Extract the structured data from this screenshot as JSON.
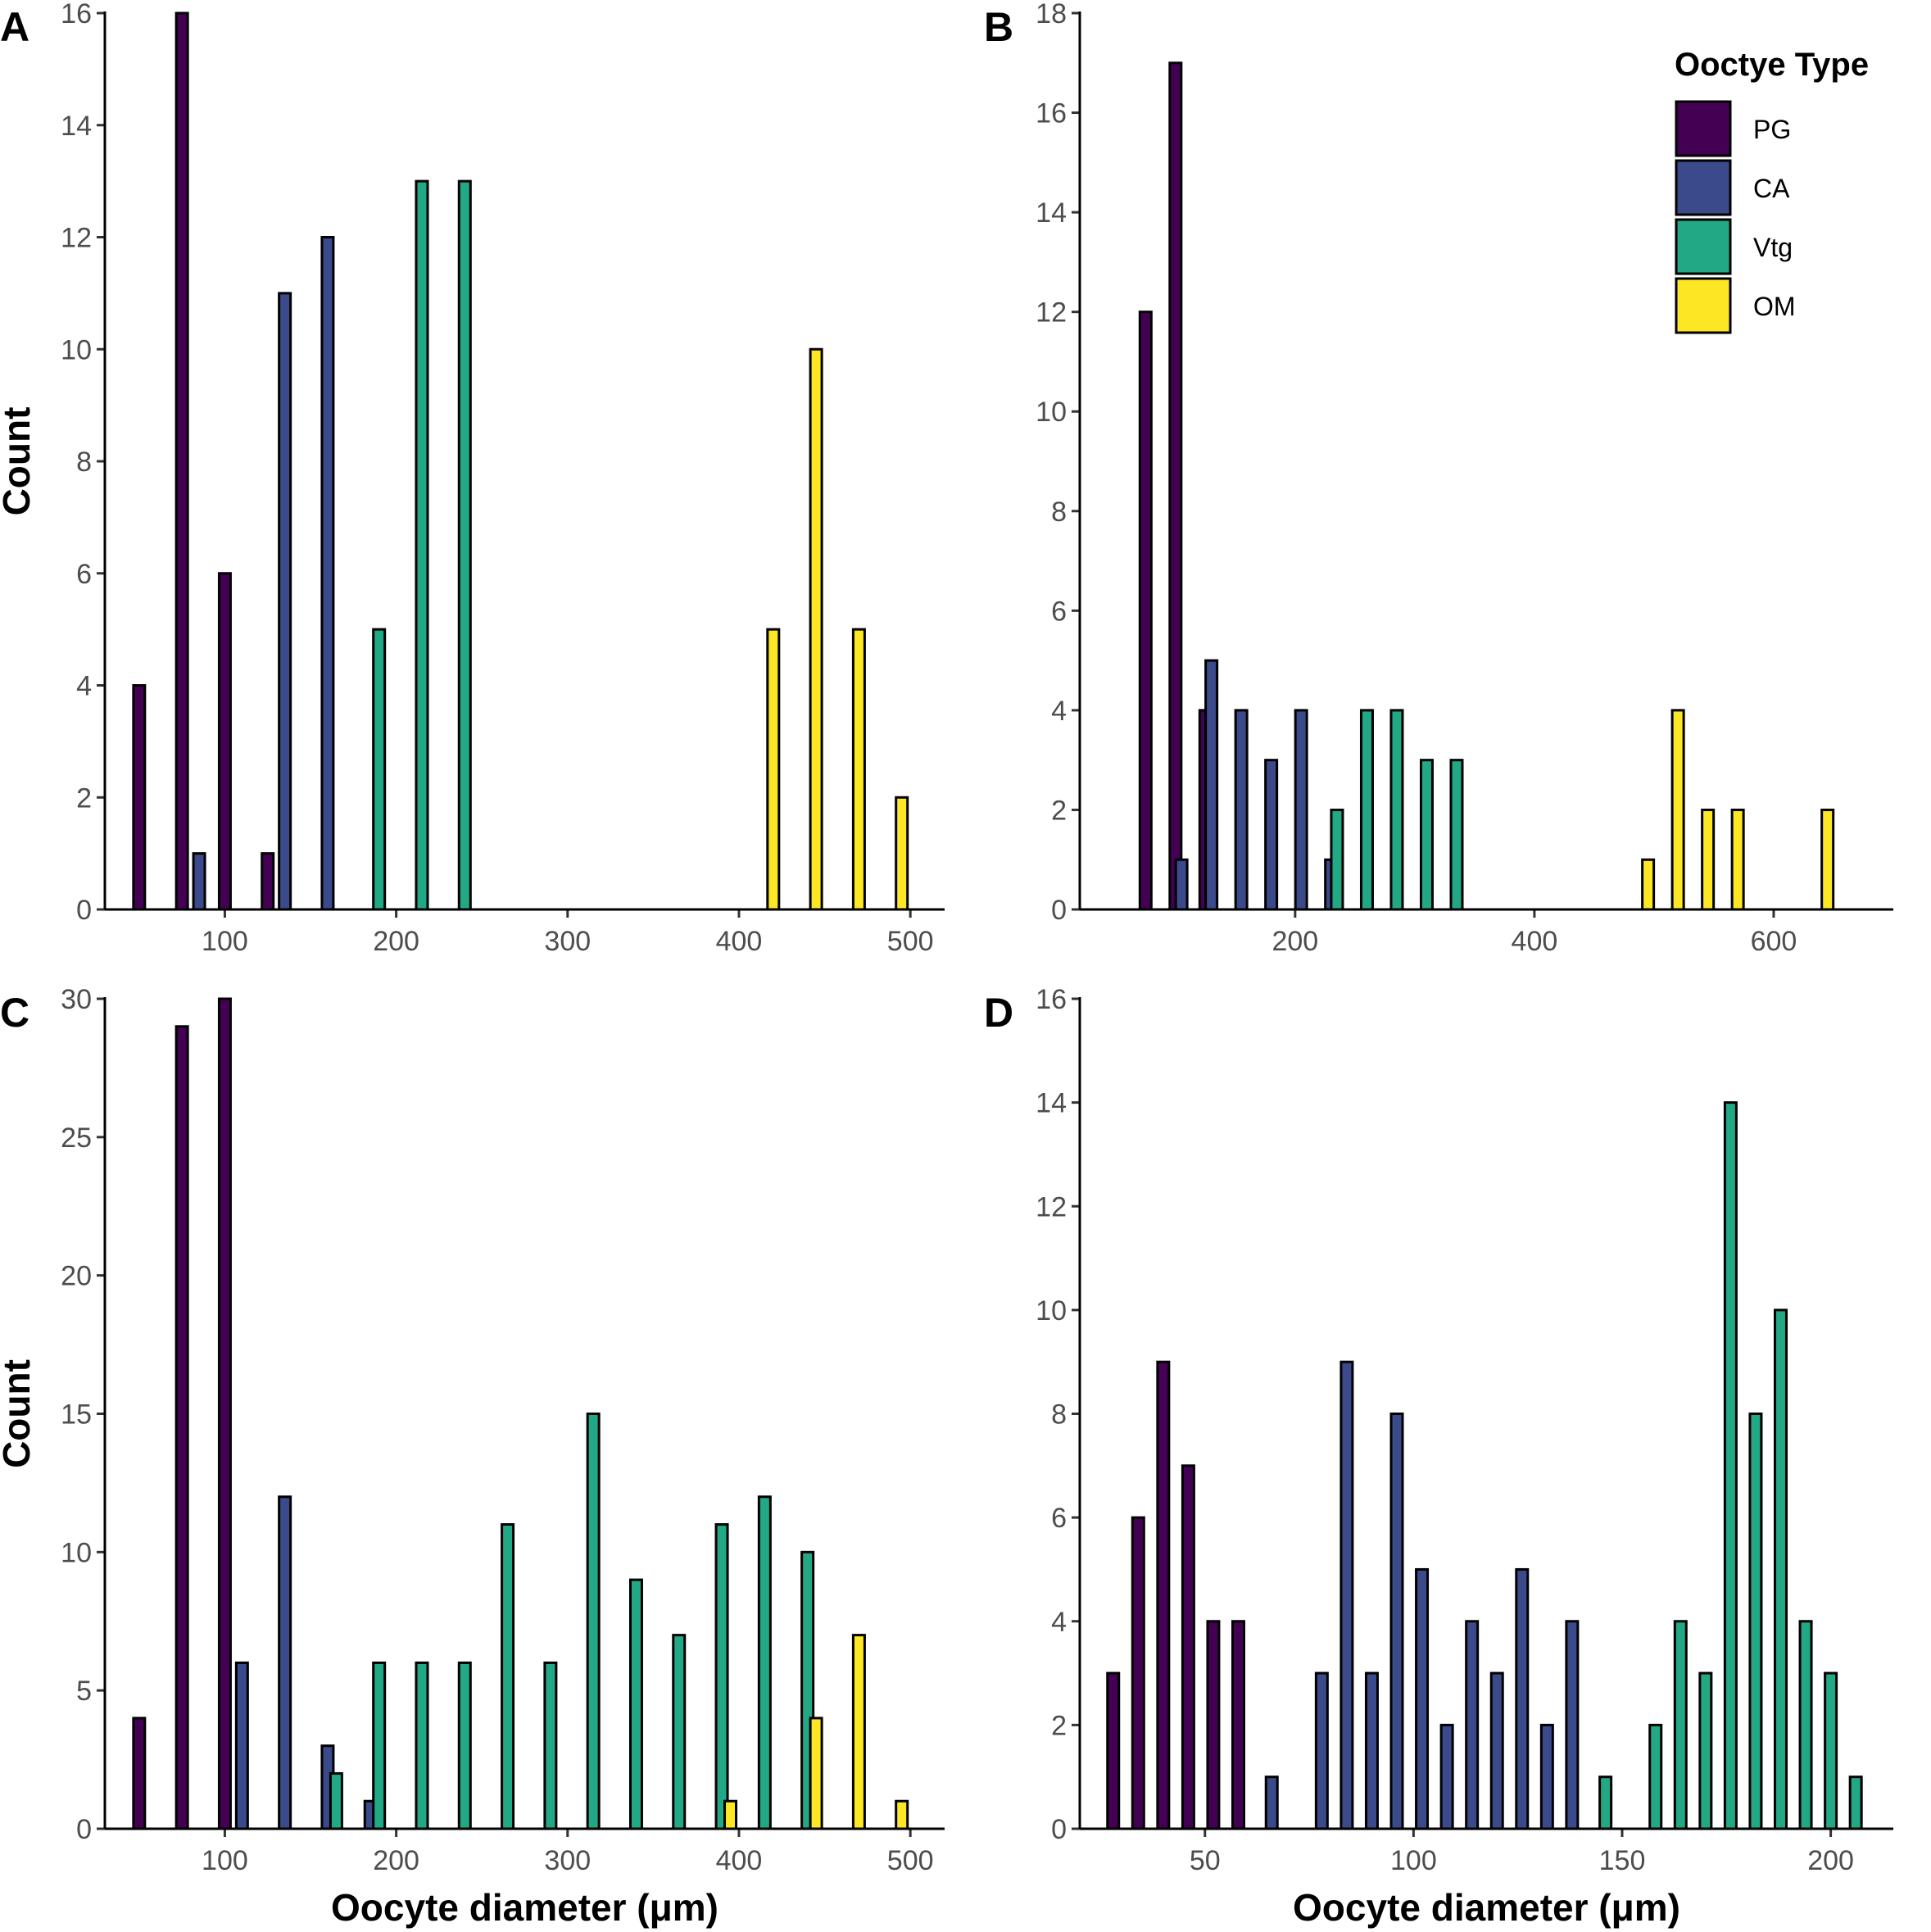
{
  "figure": {
    "xlabel": "Oocyte diameter (μm)",
    "ylabel": "Count"
  },
  "legend": {
    "title": "Ooctye Type",
    "items": [
      {
        "label": "PG",
        "color": "#440154"
      },
      {
        "label": "CA",
        "color": "#3b4a8a"
      },
      {
        "label": "Vtg",
        "color": "#22a884"
      },
      {
        "label": "OM",
        "color": "#fde725"
      }
    ]
  },
  "chart_data": [
    {
      "type": "bar",
      "panel": "A",
      "xlim": [
        30,
        520
      ],
      "ylim": [
        0,
        16
      ],
      "xticks": [
        100,
        200,
        300,
        400,
        500
      ],
      "yticks": [
        0,
        2,
        4,
        6,
        8,
        10,
        12,
        14,
        16
      ],
      "ylabel": "Count",
      "xlabel": "",
      "series": [
        {
          "name": "PG",
          "points": [
            [
              50,
              4
            ],
            [
              75,
              16
            ],
            [
              100,
              6
            ],
            [
              125,
              1
            ]
          ]
        },
        {
          "name": "CA",
          "points": [
            [
              85,
              1
            ],
            [
              135,
              11
            ],
            [
              160,
              12
            ]
          ]
        },
        {
          "name": "Vtg",
          "points": [
            [
              190,
              5
            ],
            [
              215,
              13
            ],
            [
              240,
              13
            ]
          ]
        },
        {
          "name": "OM",
          "points": [
            [
              420,
              5
            ],
            [
              445,
              10
            ],
            [
              470,
              5
            ],
            [
              495,
              2
            ]
          ]
        }
      ]
    },
    {
      "type": "bar",
      "panel": "B",
      "xlim": [
        20,
        700
      ],
      "ylim": [
        0,
        18
      ],
      "xticks": [
        200,
        400,
        600
      ],
      "yticks": [
        0,
        2,
        4,
        6,
        8,
        10,
        12,
        14,
        16,
        18
      ],
      "ylabel": "",
      "xlabel": "",
      "series": [
        {
          "name": "PG",
          "points": [
            [
              75,
              12
            ],
            [
              100,
              17
            ],
            [
              125,
              4
            ]
          ]
        },
        {
          "name": "CA",
          "points": [
            [
              105,
              1
            ],
            [
              130,
              5
            ],
            [
              155,
              4
            ],
            [
              180,
              3
            ],
            [
              205,
              4
            ],
            [
              230,
              1
            ]
          ]
        },
        {
          "name": "Vtg",
          "points": [
            [
              235,
              2
            ],
            [
              260,
              4
            ],
            [
              285,
              4
            ],
            [
              310,
              3
            ],
            [
              335,
              3
            ]
          ]
        },
        {
          "name": "OM",
          "points": [
            [
              495,
              1
            ],
            [
              520,
              4
            ],
            [
              545,
              2
            ],
            [
              570,
              2
            ],
            [
              645,
              2
            ]
          ]
        }
      ]
    },
    {
      "type": "bar",
      "panel": "C",
      "xlim": [
        30,
        520
      ],
      "ylim": [
        0,
        30
      ],
      "xticks": [
        100,
        200,
        300,
        400,
        500
      ],
      "yticks": [
        0,
        5,
        10,
        15,
        20,
        25,
        30
      ],
      "ylabel": "Count",
      "xlabel": "Oocyte diameter (μm)",
      "series": [
        {
          "name": "PG",
          "points": [
            [
              50,
              4
            ],
            [
              75,
              29
            ],
            [
              100,
              30
            ]
          ]
        },
        {
          "name": "CA",
          "points": [
            [
              110,
              6
            ],
            [
              135,
              12
            ],
            [
              160,
              3
            ],
            [
              185,
              1
            ]
          ]
        },
        {
          "name": "Vtg",
          "points": [
            [
              165,
              2
            ],
            [
              190,
              6
            ],
            [
              215,
              6
            ],
            [
              240,
              6
            ],
            [
              265,
              11
            ],
            [
              290,
              6
            ],
            [
              315,
              15
            ],
            [
              340,
              9
            ],
            [
              365,
              7
            ],
            [
              390,
              11
            ],
            [
              415,
              12
            ],
            [
              440,
              10
            ]
          ]
        },
        {
          "name": "OM",
          "points": [
            [
              395,
              1
            ],
            [
              445,
              4
            ],
            [
              470,
              7
            ],
            [
              495,
              1
            ]
          ]
        }
      ]
    },
    {
      "type": "bar",
      "panel": "D",
      "xlim": [
        20,
        215
      ],
      "ylim": [
        0,
        16
      ],
      "xticks": [
        50,
        100,
        150,
        200
      ],
      "yticks": [
        0,
        2,
        4,
        6,
        8,
        10,
        12,
        14,
        16
      ],
      "ylabel": "",
      "xlabel": "Oocyte diameter (μm)",
      "series": [
        {
          "name": "PG",
          "points": [
            [
              28,
              3
            ],
            [
              34,
              6
            ],
            [
              40,
              9
            ],
            [
              46,
              7
            ],
            [
              52,
              4
            ],
            [
              58,
              4
            ]
          ]
        },
        {
          "name": "CA",
          "points": [
            [
              66,
              1
            ],
            [
              78,
              3
            ],
            [
              84,
              9
            ],
            [
              90,
              3
            ],
            [
              96,
              8
            ],
            [
              102,
              5
            ],
            [
              108,
              2
            ],
            [
              114,
              4
            ],
            [
              120,
              3
            ],
            [
              126,
              5
            ],
            [
              132,
              2
            ],
            [
              138,
              4
            ]
          ]
        },
        {
          "name": "Vtg",
          "points": [
            [
              146,
              1
            ],
            [
              158,
              2
            ],
            [
              164,
              4
            ],
            [
              170,
              3
            ],
            [
              176,
              14
            ],
            [
              182,
              8
            ],
            [
              188,
              10
            ],
            [
              194,
              4
            ],
            [
              200,
              3
            ],
            [
              206,
              1
            ]
          ]
        },
        {
          "name": "OM",
          "points": []
        }
      ]
    }
  ]
}
